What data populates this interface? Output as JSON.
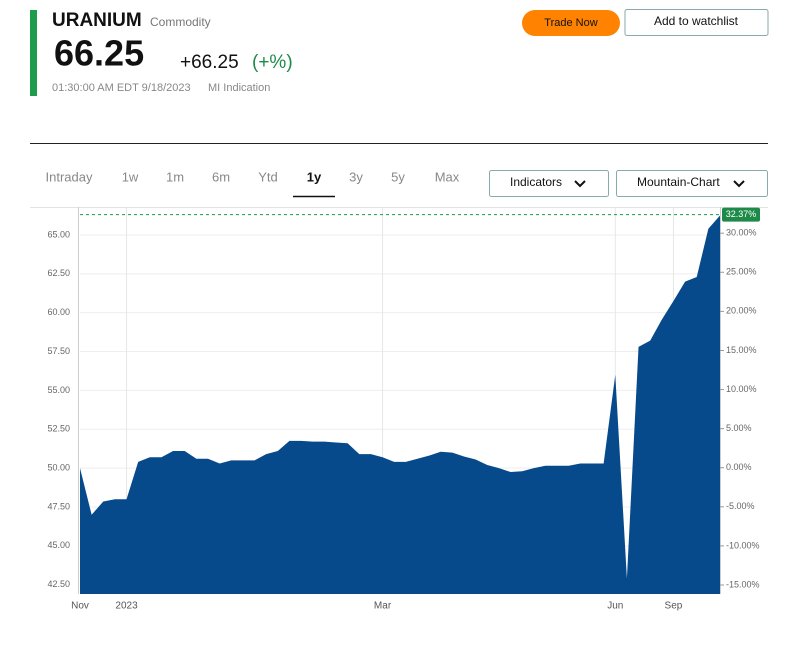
{
  "header": {
    "name": "URANIUM",
    "kind": "Commodity",
    "price": "66.25",
    "change": "+66.25",
    "change_pct": "(+%)",
    "timestamp": "01:30:00 AM EDT 9/18/2023",
    "source": "MI Indication",
    "trade": "Trade Now",
    "watchlist": "Add to watchlist"
  },
  "tabs": [
    "Intraday",
    "1w",
    "1m",
    "6m",
    "Ytd",
    "1y",
    "3y",
    "5y",
    "Max"
  ],
  "active_tab": "1y",
  "dropdowns": [
    "Indicators",
    "Mountain-Chart"
  ],
  "chart_data": {
    "type": "area",
    "color": "#064a8c",
    "grid": true,
    "categories": [
      "Nov",
      null,
      null,
      null,
      "2023",
      null,
      null,
      null,
      null,
      null,
      null,
      null,
      null,
      null,
      null,
      null,
      null,
      null,
      null,
      null,
      null,
      null,
      null,
      null,
      null,
      null,
      "Mar",
      null,
      null,
      null,
      null,
      null,
      null,
      null,
      null,
      null,
      null,
      null,
      null,
      null,
      null,
      null,
      null,
      null,
      null,
      null,
      "Jun",
      null,
      null,
      null,
      null,
      "Sep",
      null,
      null,
      null,
      null
    ],
    "values": [
      50.0,
      47.0,
      47.85,
      48.0,
      48.0,
      50.4,
      50.7,
      50.7,
      51.1,
      51.1,
      50.6,
      50.6,
      50.3,
      50.5,
      50.5,
      50.5,
      50.9,
      51.1,
      51.75,
      51.75,
      51.7,
      51.7,
      51.65,
      51.6,
      50.9,
      50.9,
      50.7,
      50.4,
      50.4,
      50.6,
      50.8,
      51.05,
      51.0,
      50.75,
      50.55,
      50.2,
      50.0,
      49.75,
      49.8,
      50.0,
      50.15,
      50.15,
      50.15,
      50.3,
      50.3,
      50.3,
      56.0,
      42.9,
      57.8,
      58.2,
      59.55,
      60.75,
      62.0,
      62.3,
      65.4,
      66.25
    ],
    "ylim": [
      41.9,
      66.8
    ],
    "yticks": [
      {
        "value": 42.5,
        "label": "42.50"
      },
      {
        "value": 45,
        "label": "45.00"
      },
      {
        "value": 47.5,
        "label": "47.50"
      },
      {
        "value": 50,
        "label": "50.00"
      },
      {
        "value": 52.5,
        "label": "52.50"
      },
      {
        "value": 55,
        "label": "55.00"
      },
      {
        "value": 57.5,
        "label": "57.50"
      },
      {
        "value": 60,
        "label": "60.00"
      },
      {
        "value": 62.5,
        "label": "62.50"
      },
      {
        "value": 65,
        "label": "65.00"
      }
    ],
    "y2lim": [
      -16.15,
      33.35
    ],
    "y2ticks": [
      {
        "value": -15,
        "label": "-15.00%"
      },
      {
        "value": -10,
        "label": "-10.00%"
      },
      {
        "value": -5,
        "label": "-5.00%"
      },
      {
        "value": 0,
        "label": "0.00%"
      },
      {
        "value": 5,
        "label": "5.00%"
      },
      {
        "value": 10,
        "label": "10.00%"
      },
      {
        "value": 15,
        "label": "15.00%"
      },
      {
        "value": 20,
        "label": "20.00%"
      },
      {
        "value": 25,
        "label": "25.00%"
      },
      {
        "value": 30,
        "label": "30.00%"
      }
    ],
    "last_label": {
      "value": 32.37,
      "label": "32.37%"
    }
  }
}
